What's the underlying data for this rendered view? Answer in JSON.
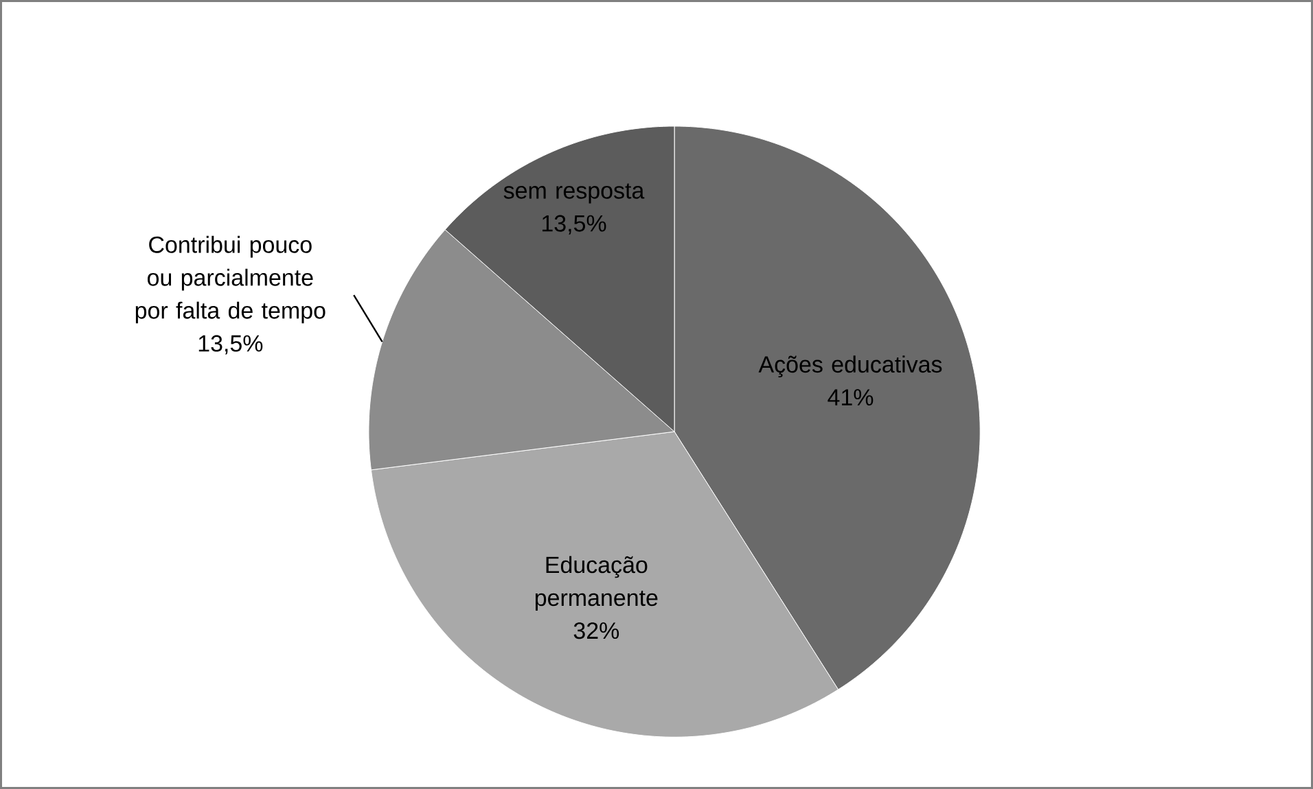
{
  "chart_data": {
    "type": "pie",
    "categories": [
      "Ações educativas",
      "Educação permanente",
      "Contribui pouco ou parcialmente por falta de tempo",
      "sem resposta"
    ],
    "values": [
      41,
      32,
      13.5,
      13.5
    ],
    "value_labels": [
      "41%",
      "32%",
      "13,5%",
      "13,5%"
    ],
    "colors": [
      "#6a6a6a",
      "#a9a9a9",
      "#8c8c8c",
      "#5c5c5c"
    ]
  }
}
